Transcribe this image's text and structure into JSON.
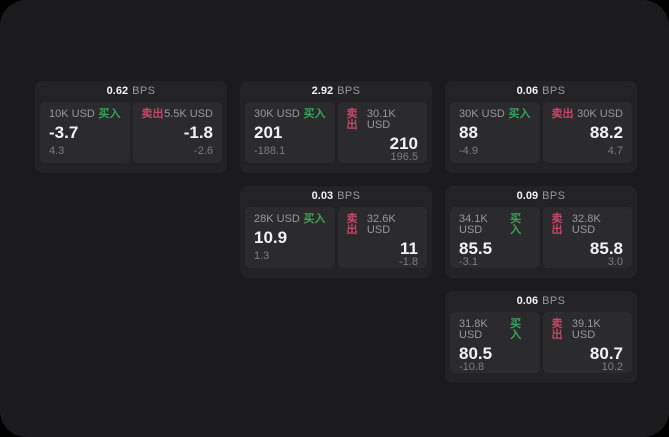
{
  "theme": {
    "page-bg": "#000000",
    "panel-bg": "#1b1b1d",
    "card-bg": "#232326",
    "tile-bg": "#2b2b2e",
    "text-primary": "#f2f2f2",
    "text-secondary": "#98989d",
    "text-tertiary": "#7d7d82",
    "buy-green": "#3aa158",
    "sell-red": "#c64665"
  },
  "labels": {
    "bps_unit": "BPS",
    "buy": "买入",
    "sell": "卖出"
  },
  "cards": [
    {
      "bps": "0.62",
      "buy": {
        "size": "10K USD",
        "price": "-3.7",
        "delta": "4.3"
      },
      "sell": {
        "size": "5.5K USD",
        "price": "-1.8",
        "delta": "-2.6"
      }
    },
    {
      "bps": "2.92",
      "buy": {
        "size": "30K USD",
        "price": "201",
        "delta": "-188.1"
      },
      "sell": {
        "size": "30.1K USD",
        "price": "210",
        "delta": "196.5"
      }
    },
    {
      "bps": "0.06",
      "buy": {
        "size": "30K USD",
        "price": "88",
        "delta": "-4.9"
      },
      "sell": {
        "size": "30K USD",
        "price": "88.2",
        "delta": "4.7"
      }
    },
    {
      "bps": "0.03",
      "buy": {
        "size": "28K USD",
        "price": "10.9",
        "delta": "1.3"
      },
      "sell": {
        "size": "32.6K USD",
        "price": "11",
        "delta": "-1.8"
      }
    },
    {
      "bps": "0.09",
      "buy": {
        "size": "34.1K USD",
        "price": "85.5",
        "delta": "-3.1"
      },
      "sell": {
        "size": "32.8K USD",
        "price": "85.8",
        "delta": "3.0"
      }
    },
    {
      "bps": "0.06",
      "buy": {
        "size": "31.8K USD",
        "price": "80.5",
        "delta": "-10.8"
      },
      "sell": {
        "size": "39.1K USD",
        "price": "80.7",
        "delta": "10.2"
      }
    }
  ]
}
